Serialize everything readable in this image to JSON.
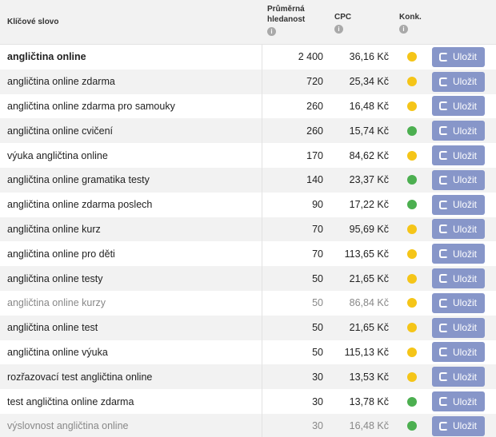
{
  "header": {
    "keyword": "Klíčové slovo",
    "volume_line1": "Průměrná",
    "volume_line2": "hledanost",
    "cpc": "CPC",
    "competition": "Konk.",
    "info_glyph": "i"
  },
  "save_label": "Uložit",
  "colors": {
    "yellow": "#f5c518",
    "green": "#4caf50",
    "button": "#8796c9"
  },
  "rows": [
    {
      "keyword": "angličtina online",
      "volume": "2 400",
      "cpc": "36,16 Kč",
      "competition": "yellow"
    },
    {
      "keyword": "angličtina online zdarma",
      "volume": "720",
      "cpc": "25,34 Kč",
      "competition": "yellow"
    },
    {
      "keyword": "angličtina online zdarma pro samouky",
      "volume": "260",
      "cpc": "16,48 Kč",
      "competition": "yellow"
    },
    {
      "keyword": "angličtina online cvičení",
      "volume": "260",
      "cpc": "15,74 Kč",
      "competition": "green"
    },
    {
      "keyword": "výuka angličtina online",
      "volume": "170",
      "cpc": "84,62 Kč",
      "competition": "yellow"
    },
    {
      "keyword": "angličtina online gramatika testy",
      "volume": "140",
      "cpc": "23,37 Kč",
      "competition": "green"
    },
    {
      "keyword": "angličtina online zdarma poslech",
      "volume": "90",
      "cpc": "17,22 Kč",
      "competition": "green"
    },
    {
      "keyword": "angličtina online kurz",
      "volume": "70",
      "cpc": "95,69 Kč",
      "competition": "yellow"
    },
    {
      "keyword": "angličtina online pro děti",
      "volume": "70",
      "cpc": "113,65 Kč",
      "competition": "yellow"
    },
    {
      "keyword": "angličtina online testy",
      "volume": "50",
      "cpc": "21,65 Kč",
      "competition": "yellow"
    },
    {
      "keyword": "angličtina online kurzy",
      "volume": "50",
      "cpc": "86,84 Kč",
      "competition": "yellow"
    },
    {
      "keyword": "angličtina online test",
      "volume": "50",
      "cpc": "21,65 Kč",
      "competition": "yellow"
    },
    {
      "keyword": "angličtina online výuka",
      "volume": "50",
      "cpc": "115,13 Kč",
      "competition": "yellow"
    },
    {
      "keyword": "rozřazovací test angličtina online",
      "volume": "30",
      "cpc": "13,53 Kč",
      "competition": "yellow"
    },
    {
      "keyword": "test angličtina online zdarma",
      "volume": "30",
      "cpc": "13,78 Kč",
      "competition": "green"
    },
    {
      "keyword": "výslovnost angličtina online",
      "volume": "30",
      "cpc": "16,48 Kč",
      "competition": "green"
    }
  ]
}
